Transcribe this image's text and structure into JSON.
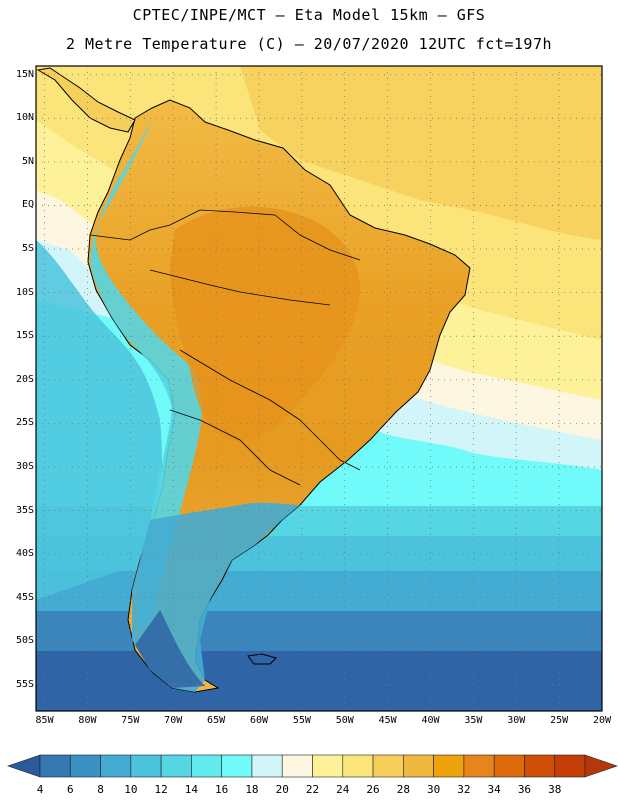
{
  "header": {
    "line1": "CPTEC/INPE/MCT –  Eta Model 15km – GFS",
    "line2": "2 Metre Temperature (C) – 20/07/2020 12UTC fct=197h"
  },
  "map": {
    "lat_labels": [
      "15N",
      "10N",
      "5N",
      "EQ",
      "5S",
      "10S",
      "15S",
      "20S",
      "25S",
      "30S",
      "35S",
      "40S",
      "45S",
      "50S",
      "55S"
    ],
    "lon_labels": [
      "85W",
      "80W",
      "75W",
      "70W",
      "65W",
      "60W",
      "55W",
      "50W",
      "45W",
      "40W",
      "35W",
      "30W",
      "25W",
      "20W"
    ],
    "extent": {
      "lon_min": -86,
      "lon_max": -20,
      "lat_min": -58,
      "lat_max": 16
    }
  },
  "colorbar": {
    "labels": [
      "4",
      "6",
      "8",
      "10",
      "12",
      "14",
      "16",
      "18",
      "20",
      "22",
      "24",
      "26",
      "28",
      "30",
      "32",
      "34",
      "36",
      "38"
    ],
    "colors": [
      "#2b5a9b",
      "#3479b2",
      "#3a92c4",
      "#44acd2",
      "#4cc3dc",
      "#56d5e2",
      "#62eaee",
      "#70fafa",
      "#d2f5fa",
      "#fdf7e2",
      "#fdf19a",
      "#fbe47a",
      "#f6cf5b",
      "#f0b83e",
      "#eea30a",
      "#e7851c",
      "#df6a0c",
      "#cf4f08",
      "#c43e05",
      "#b5380a"
    ]
  }
}
